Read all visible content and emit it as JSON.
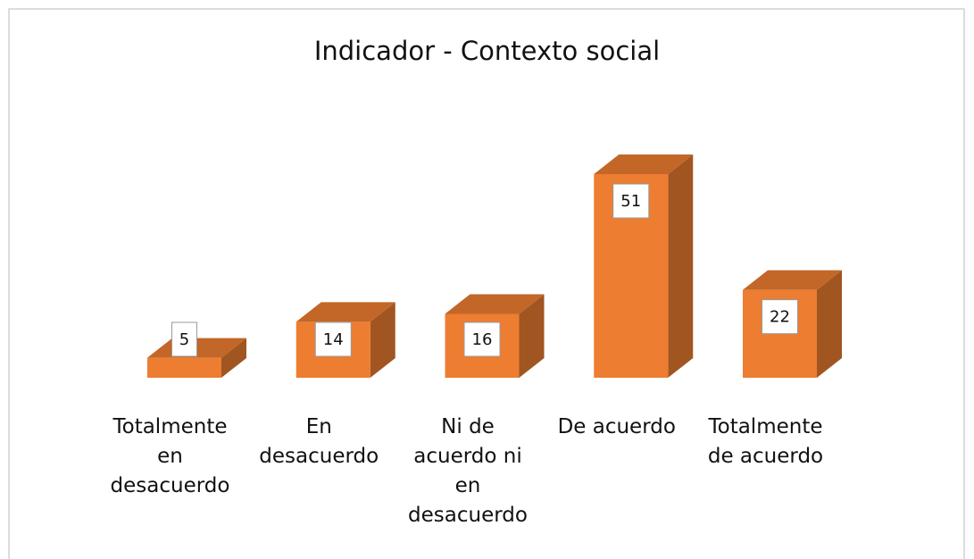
{
  "chart_data": {
    "type": "bar3d",
    "title": "Indicador - Contexto social",
    "categories": [
      "Totalmente en desacuerdo",
      "En desacuerdo",
      "Ni de acuerdo ni en desacuerdo",
      "De acuerdo",
      "Totalmente de acuerdo"
    ],
    "values": [
      5,
      14,
      16,
      51,
      22
    ],
    "color": "#ed7d31"
  }
}
